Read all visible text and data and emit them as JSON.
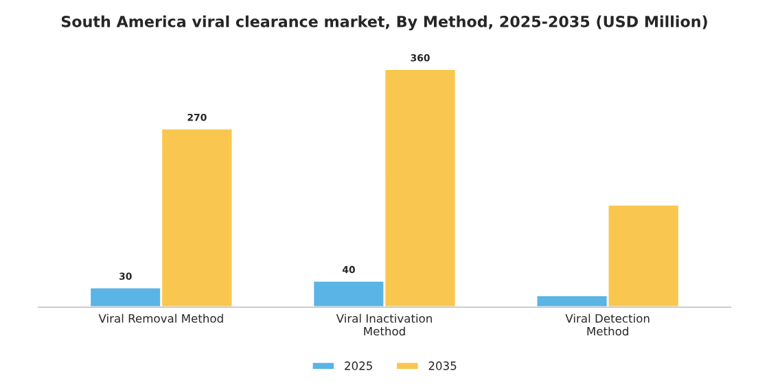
{
  "chart_data": {
    "type": "bar",
    "title": "South America viral clearance market, By Method, 2025-2035 (USD Million)",
    "categories": [
      "Viral Removal Method",
      "Viral Inactivation\nMethod",
      "Viral Detection\nMethod"
    ],
    "series": [
      {
        "name": "2025",
        "color": "#5ab4e5",
        "values": [
          30,
          40,
          18
        ],
        "value_labels": [
          "30",
          "40",
          null
        ]
      },
      {
        "name": "2035",
        "color": "#f9c74f",
        "values": [
          270,
          360,
          155
        ],
        "value_labels": [
          "270",
          "360",
          null
        ]
      }
    ],
    "legend": "bottom",
    "grid": false
  }
}
